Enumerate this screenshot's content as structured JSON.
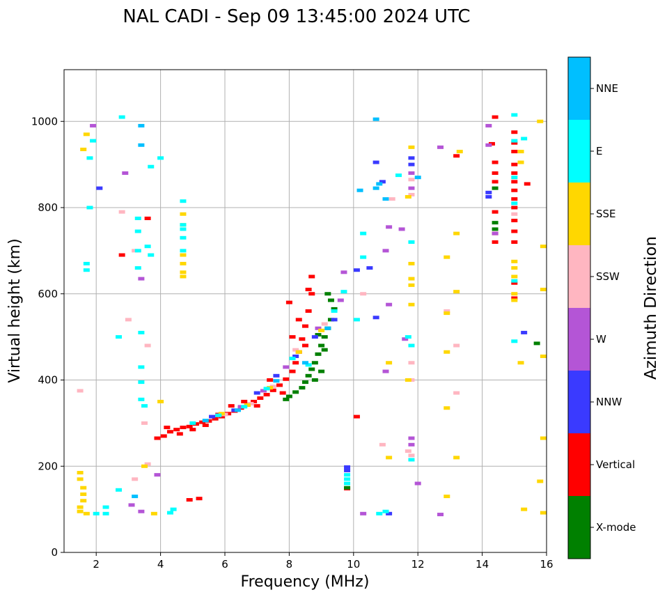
{
  "chart_data": {
    "type": "scatter",
    "title": "NAL CADI - Sep 09 13:45:00 2024 UTC",
    "xlabel": "Frequency (MHz)",
    "ylabel": "Virtual height (km)",
    "xlim": [
      1,
      16
    ],
    "ylim": [
      0,
      1120
    ],
    "xticks": [
      2,
      4,
      6,
      8,
      10,
      12,
      14,
      16
    ],
    "yticks": [
      0,
      200,
      400,
      600,
      800,
      1000
    ],
    "grid": true,
    "colorbar": {
      "label": "Azimuth Direction",
      "categories": [
        {
          "name": "X-mode",
          "color": "#008000"
        },
        {
          "name": "Vertical",
          "color": "#ff0000"
        },
        {
          "name": "NNW",
          "color": "#3a3aff"
        },
        {
          "name": "W",
          "color": "#b455d6"
        },
        {
          "name": "SSW",
          "color": "#ffb6c1"
        },
        {
          "name": "SSE",
          "color": "#ffd700"
        },
        {
          "name": "E",
          "color": "#00ffff"
        },
        {
          "name": "NNE",
          "color": "#00bfff"
        }
      ]
    },
    "series": [
      {
        "name": "Vertical",
        "color": "#ff0000",
        "points": [
          [
            3.9,
            265
          ],
          [
            4.1,
            270
          ],
          [
            4.3,
            280
          ],
          [
            4.5,
            285
          ],
          [
            4.7,
            290
          ],
          [
            4.9,
            292
          ],
          [
            5.1,
            298
          ],
          [
            5.3,
            302
          ],
          [
            5.5,
            305
          ],
          [
            5.7,
            310
          ],
          [
            5.9,
            315
          ],
          [
            6.1,
            322
          ],
          [
            6.3,
            328
          ],
          [
            6.5,
            335
          ],
          [
            6.7,
            342
          ],
          [
            6.9,
            350
          ],
          [
            7.1,
            358
          ],
          [
            7.3,
            366
          ],
          [
            7.5,
            376
          ],
          [
            7.7,
            388
          ],
          [
            7.9,
            402
          ],
          [
            8.1,
            420
          ],
          [
            8.2,
            440
          ],
          [
            8.3,
            465
          ],
          [
            8.4,
            495
          ],
          [
            8.5,
            525
          ],
          [
            8.6,
            560
          ],
          [
            8.7,
            600
          ],
          [
            8.7,
            640
          ],
          [
            4.2,
            290
          ],
          [
            4.6,
            275
          ],
          [
            5.0,
            285
          ],
          [
            5.4,
            295
          ],
          [
            5.8,
            320
          ],
          [
            6.2,
            340
          ],
          [
            6.6,
            350
          ],
          [
            7.0,
            340
          ],
          [
            7.4,
            400
          ],
          [
            7.8,
            370
          ],
          [
            8.1,
            500
          ],
          [
            8.3,
            540
          ],
          [
            8.5,
            480
          ],
          [
            8.6,
            610
          ],
          [
            8.0,
            580
          ],
          [
            14.4,
            720
          ],
          [
            14.4,
            740
          ],
          [
            14.4,
            790
          ],
          [
            14.4,
            860
          ],
          [
            14.4,
            880
          ],
          [
            14.4,
            905
          ],
          [
            14.4,
            1010
          ],
          [
            15.0,
            590
          ],
          [
            15.0,
            625
          ],
          [
            15.0,
            720
          ],
          [
            15.0,
            745
          ],
          [
            15.0,
            770
          ],
          [
            15.0,
            800
          ],
          [
            15.0,
            820
          ],
          [
            15.0,
            840
          ],
          [
            15.0,
            860
          ],
          [
            15.0,
            880
          ],
          [
            15.0,
            900
          ],
          [
            15.0,
            930
          ],
          [
            15.0,
            950
          ],
          [
            15.0,
            975
          ],
          [
            15.4,
            855
          ],
          [
            10.1,
            315
          ],
          [
            5.2,
            125
          ],
          [
            4.9,
            122
          ],
          [
            2.8,
            690
          ],
          [
            3.6,
            775
          ],
          [
            13.2,
            920
          ],
          [
            14.3,
            948
          ],
          [
            9.8,
            148
          ]
        ]
      },
      {
        "name": "X-mode",
        "color": "#008000",
        "points": [
          [
            7.9,
            355
          ],
          [
            8.0,
            362
          ],
          [
            8.2,
            372
          ],
          [
            8.4,
            382
          ],
          [
            8.5,
            395
          ],
          [
            8.6,
            410
          ],
          [
            8.7,
            425
          ],
          [
            8.8,
            440
          ],
          [
            8.9,
            460
          ],
          [
            9.0,
            480
          ],
          [
            9.1,
            500
          ],
          [
            9.2,
            520
          ],
          [
            9.3,
            540
          ],
          [
            9.4,
            565
          ],
          [
            9.3,
            585
          ],
          [
            9.2,
            600
          ],
          [
            8.8,
            400
          ],
          [
            9.0,
            420
          ],
          [
            9.1,
            470
          ],
          [
            8.9,
            505
          ],
          [
            14.4,
            750
          ],
          [
            14.4,
            765
          ],
          [
            14.4,
            845
          ],
          [
            15.7,
            485
          ],
          [
            9.8,
            150
          ]
        ]
      },
      {
        "name": "NNW",
        "color": "#3a3aff",
        "points": [
          [
            5.6,
            315
          ],
          [
            6.3,
            330
          ],
          [
            7.0,
            370
          ],
          [
            7.6,
            410
          ],
          [
            8.2,
            455
          ],
          [
            8.8,
            500
          ],
          [
            9.4,
            540
          ],
          [
            14.2,
            835
          ],
          [
            14.2,
            825
          ],
          [
            11.8,
            915
          ],
          [
            11.8,
            900
          ],
          [
            10.7,
            905
          ],
          [
            10.9,
            860
          ],
          [
            10.7,
            545
          ],
          [
            10.5,
            660
          ],
          [
            10.1,
            655
          ],
          [
            9.8,
            198
          ],
          [
            9.8,
            190
          ],
          [
            11.1,
            90
          ],
          [
            2.1,
            845
          ],
          [
            15.3,
            510
          ]
        ]
      },
      {
        "name": "W",
        "color": "#b455d6",
        "points": [
          [
            5.8,
            318
          ],
          [
            6.5,
            338
          ],
          [
            7.2,
            375
          ],
          [
            7.9,
            430
          ],
          [
            8.9,
            520
          ],
          [
            9.6,
            585
          ],
          [
            9.7,
            650
          ],
          [
            11.8,
            880
          ],
          [
            11.8,
            845
          ],
          [
            12.7,
            940
          ],
          [
            14.2,
            945
          ],
          [
            14.4,
            740
          ],
          [
            11.1,
            755
          ],
          [
            11.5,
            750
          ],
          [
            11.1,
            575
          ],
          [
            11.6,
            495
          ],
          [
            11.8,
            265
          ],
          [
            11.8,
            250
          ],
          [
            12.0,
            160
          ],
          [
            12.7,
            88
          ],
          [
            10.3,
            90
          ],
          [
            11.0,
            420
          ],
          [
            11.0,
            700
          ],
          [
            2.9,
            880
          ],
          [
            3.4,
            635
          ],
          [
            3.9,
            180
          ],
          [
            3.1,
            110
          ],
          [
            3.4,
            95
          ],
          [
            1.9,
            990
          ],
          [
            14.2,
            990
          ]
        ]
      },
      {
        "name": "SSW",
        "color": "#ffb6c1",
        "points": [
          [
            6.0,
            320
          ],
          [
            6.8,
            345
          ],
          [
            7.5,
            385
          ],
          [
            8.2,
            470
          ],
          [
            9.1,
            530
          ],
          [
            11.8,
            865
          ],
          [
            11.8,
            830
          ],
          [
            11.8,
            440
          ],
          [
            11.8,
            400
          ],
          [
            11.7,
            235
          ],
          [
            11.8,
            225
          ],
          [
            13.2,
            480
          ],
          [
            13.2,
            370
          ],
          [
            12.9,
            560
          ],
          [
            11.2,
            820
          ],
          [
            10.9,
            250
          ],
          [
            10.3,
            600
          ],
          [
            2.8,
            790
          ],
          [
            3.0,
            540
          ],
          [
            3.2,
            700
          ],
          [
            3.6,
            480
          ],
          [
            3.5,
            300
          ],
          [
            3.6,
            205
          ],
          [
            3.2,
            170
          ],
          [
            1.5,
            375
          ],
          [
            15.0,
            785
          ]
        ]
      },
      {
        "name": "SSE",
        "color": "#ffd700",
        "points": [
          [
            5.9,
            322
          ],
          [
            6.7,
            342
          ],
          [
            7.4,
            382
          ],
          [
            8.3,
            465
          ],
          [
            9.0,
            515
          ],
          [
            4.7,
            650
          ],
          [
            4.7,
            640
          ],
          [
            4.7,
            670
          ],
          [
            4.7,
            690
          ],
          [
            4.7,
            760
          ],
          [
            4.7,
            785
          ],
          [
            15.0,
            640
          ],
          [
            15.0,
            660
          ],
          [
            15.0,
            675
          ],
          [
            15.0,
            600
          ],
          [
            15.0,
            585
          ],
          [
            15.2,
            930
          ],
          [
            15.2,
            905
          ],
          [
            15.8,
            1000
          ],
          [
            15.9,
            710
          ],
          [
            15.9,
            610
          ],
          [
            15.9,
            455
          ],
          [
            15.9,
            265
          ],
          [
            15.8,
            165
          ],
          [
            15.9,
            92
          ],
          [
            15.3,
            100
          ],
          [
            15.2,
            440
          ],
          [
            13.2,
            605
          ],
          [
            13.2,
            740
          ],
          [
            13.3,
            930
          ],
          [
            12.9,
            685
          ],
          [
            12.9,
            555
          ],
          [
            12.9,
            465
          ],
          [
            12.9,
            335
          ],
          [
            12.9,
            130
          ],
          [
            13.2,
            220
          ],
          [
            11.8,
            940
          ],
          [
            11.8,
            670
          ],
          [
            11.8,
            635
          ],
          [
            11.8,
            620
          ],
          [
            11.8,
            575
          ],
          [
            11.7,
            400
          ],
          [
            11.1,
            440
          ],
          [
            11.1,
            220
          ],
          [
            11.7,
            825
          ],
          [
            1.5,
            185
          ],
          [
            1.5,
            170
          ],
          [
            1.6,
            150
          ],
          [
            1.6,
            135
          ],
          [
            1.6,
            120
          ],
          [
            1.5,
            105
          ],
          [
            1.5,
            95
          ],
          [
            1.7,
            90
          ],
          [
            3.5,
            200
          ],
          [
            3.8,
            90
          ],
          [
            4.0,
            350
          ],
          [
            1.7,
            970
          ],
          [
            1.6,
            935
          ]
        ]
      },
      {
        "name": "E",
        "color": "#00ffff",
        "points": [
          [
            5.0,
            300
          ],
          [
            5.8,
            318
          ],
          [
            6.6,
            338
          ],
          [
            7.3,
            380
          ],
          [
            8.1,
            450
          ],
          [
            8.6,
            435
          ],
          [
            9.4,
            560
          ],
          [
            9.7,
            605
          ],
          [
            4.7,
            760
          ],
          [
            4.7,
            750
          ],
          [
            4.7,
            730
          ],
          [
            4.7,
            700
          ],
          [
            4.7,
            815
          ],
          [
            15.0,
            810
          ],
          [
            15.0,
            870
          ],
          [
            15.0,
            955
          ],
          [
            15.0,
            1015
          ],
          [
            15.3,
            960
          ],
          [
            15.0,
            630
          ],
          [
            15.0,
            490
          ],
          [
            10.1,
            540
          ],
          [
            10.3,
            740
          ],
          [
            10.3,
            685
          ],
          [
            11.4,
            875
          ],
          [
            11.7,
            500
          ],
          [
            11.8,
            720
          ],
          [
            11.8,
            480
          ],
          [
            11.8,
            215
          ],
          [
            9.8,
            180
          ],
          [
            9.8,
            170
          ],
          [
            9.8,
            160
          ],
          [
            11.0,
            95
          ],
          [
            10.8,
            90
          ],
          [
            4.4,
            100
          ],
          [
            4.3,
            92
          ],
          [
            3.4,
            510
          ],
          [
            3.4,
            430
          ],
          [
            3.4,
            395
          ],
          [
            3.4,
            355
          ],
          [
            3.5,
            340
          ],
          [
            3.6,
            710
          ],
          [
            3.7,
            895
          ],
          [
            4.0,
            915
          ],
          [
            3.7,
            690
          ],
          [
            3.3,
            660
          ],
          [
            3.3,
            700
          ],
          [
            3.3,
            745
          ],
          [
            3.3,
            775
          ],
          [
            2.3,
            105
          ],
          [
            2.3,
            90
          ],
          [
            2.0,
            90
          ],
          [
            1.8,
            800
          ],
          [
            1.7,
            670
          ],
          [
            1.7,
            655
          ],
          [
            1.9,
            955
          ],
          [
            2.8,
            1010
          ],
          [
            1.8,
            915
          ],
          [
            2.7,
            500
          ],
          [
            2.7,
            145
          ]
        ]
      },
      {
        "name": "NNE",
        "color": "#00bfff",
        "points": [
          [
            5.4,
            306
          ],
          [
            6.4,
            330
          ],
          [
            7.6,
            398
          ],
          [
            8.5,
            440
          ],
          [
            9.2,
            520
          ],
          [
            10.7,
            1005
          ],
          [
            10.8,
            855
          ],
          [
            10.7,
            845
          ],
          [
            10.2,
            840
          ],
          [
            11.0,
            820
          ],
          [
            12.0,
            870
          ],
          [
            3.4,
            990
          ],
          [
            3.4,
            945
          ],
          [
            3.2,
            130
          ]
        ]
      }
    ]
  }
}
